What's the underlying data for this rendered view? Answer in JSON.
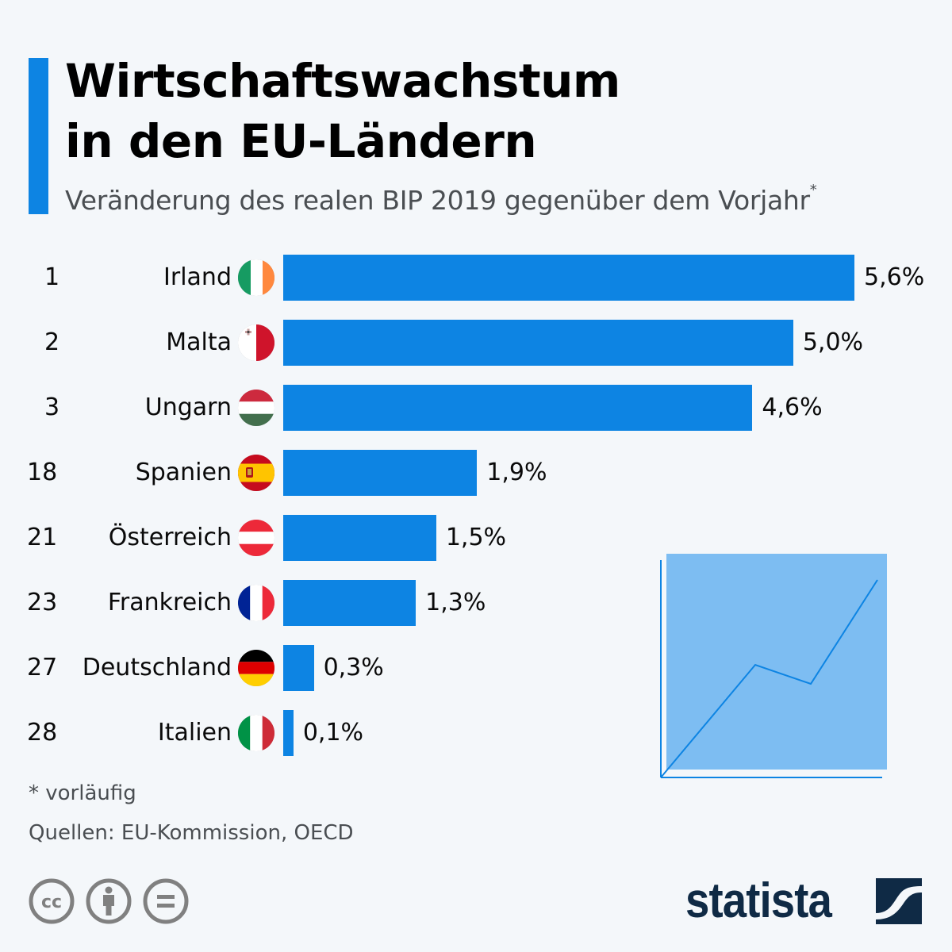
{
  "header": {
    "title_line1": "Wirtschaftswachstum",
    "title_line2": "in den EU-Ländern",
    "subtitle": "Veränderung des realen BIP 2019 gegenüber dem Vorjahr",
    "subtitle_marker": "*"
  },
  "colors": {
    "accent": "#0d84e3",
    "bar": "#0d84e3",
    "illustration_fill": "#7dbdf2",
    "logo": "#0f2a45",
    "cc_icons": "#808080"
  },
  "chart_data": {
    "type": "bar",
    "orientation": "horizontal",
    "title": "Wirtschaftswachstum in den EU-Ländern",
    "subtitle": "Veränderung des realen BIP 2019 gegenüber dem Vorjahr*",
    "xlabel": "",
    "ylabel": "",
    "unit": "%",
    "xlim": [
      0,
      5.6
    ],
    "grid": false,
    "categories": [
      "Irland",
      "Malta",
      "Ungarn",
      "Spanien",
      "Österreich",
      "Frankreich",
      "Deutschland",
      "Italien"
    ],
    "ranks": [
      "1",
      "2",
      "3",
      "18",
      "21",
      "23",
      "27",
      "28"
    ],
    "values": [
      5.6,
      5.0,
      4.6,
      1.9,
      1.5,
      1.3,
      0.3,
      0.1
    ],
    "labels": [
      "5,6%",
      "5,0%",
      "4,6%",
      "1,9%",
      "1,5%",
      "1,3%",
      "0,3%",
      "0,1%"
    ],
    "flags": [
      "ireland-flag",
      "malta-flag",
      "hungary-flag",
      "spain-flag",
      "austria-flag",
      "france-flag",
      "germany-flag",
      "italy-flag"
    ]
  },
  "footer": {
    "note": "* vorläufig",
    "source": "Quellen: EU-Kommission, OECD",
    "license_icons": [
      "cc-icon",
      "attribution-icon",
      "no-derivatives-icon"
    ],
    "brand": "statista"
  }
}
